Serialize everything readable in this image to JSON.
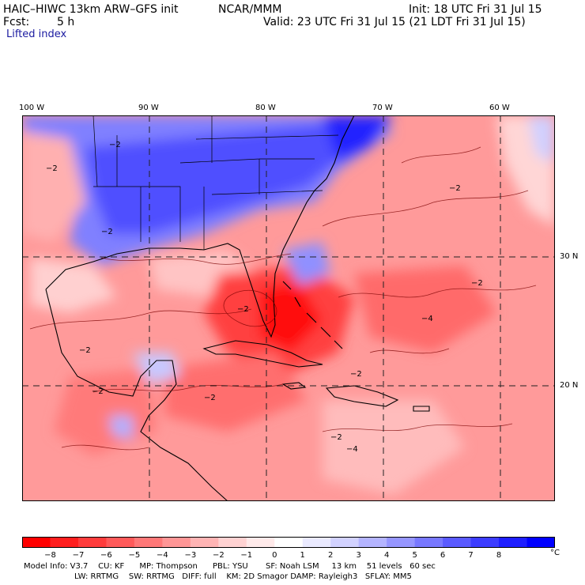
{
  "header": {
    "model": "HAIC–HIWC 13km ARW–GFS init",
    "org": "NCAR/MMM",
    "init": "Init: 18 UTC Fri 31 Jul 15",
    "fcst_label": "Fcst:",
    "fcst_value": "5 h",
    "valid": "Valid: 23 UTC Fri 31 Jul 15 (21 LDT Fri 31 Jul 15)",
    "field": "Lifted index"
  },
  "axes": {
    "lon_labels": [
      "100 W",
      "90 W",
      "80 W",
      "70 W",
      "60 W"
    ],
    "lat_labels": [
      "30 N",
      "20 N"
    ]
  },
  "legend": {
    "ticks": [
      "−8",
      "−7",
      "−6",
      "−5",
      "−4",
      "−3",
      "−2",
      "−1",
      "0",
      "1",
      "2",
      "3",
      "4",
      "5",
      "6",
      "7",
      "8"
    ],
    "unit": "°C",
    "colors": [
      "#ff0000",
      "#ff1e1e",
      "#ff3c3c",
      "#ff5a5a",
      "#ff7878",
      "#ff9696",
      "#ffb4b4",
      "#ffd2d2",
      "#ffeaea",
      "#ffffff",
      "#eaeaff",
      "#d2d2ff",
      "#b4b4ff",
      "#9696ff",
      "#7878ff",
      "#5a5aff",
      "#3c3cff",
      "#1e1eff",
      "#0000ff"
    ]
  },
  "footer": {
    "line1": "Model Info: V3.7    CU: KF      MP: Thompson      PBL: YSU       SF: Noah LSM     13 km    51 levels   60 sec",
    "line2": "LW: RRTMG    SW: RRTMG   DIFF: full    KM: 2D Smagor DAMP: Rayleigh3   SFLAY: MM5"
  },
  "map": {
    "contour_labels": [
      "−2",
      "−2",
      "−2",
      "−2",
      "−2",
      "−2",
      "−2",
      "−2",
      "−2",
      "−4",
      "−4",
      "−2",
      "−2"
    ],
    "colors": {
      "neg_strong": "#ff2020",
      "neg_mid": "#ff6060",
      "neg_light": "#ff9a9a",
      "neg_pale": "#ffc8c8",
      "pos_pale": "#d8d8ff",
      "pos_mid": "#8c8cff",
      "pos_strong": "#4040ff"
    }
  }
}
